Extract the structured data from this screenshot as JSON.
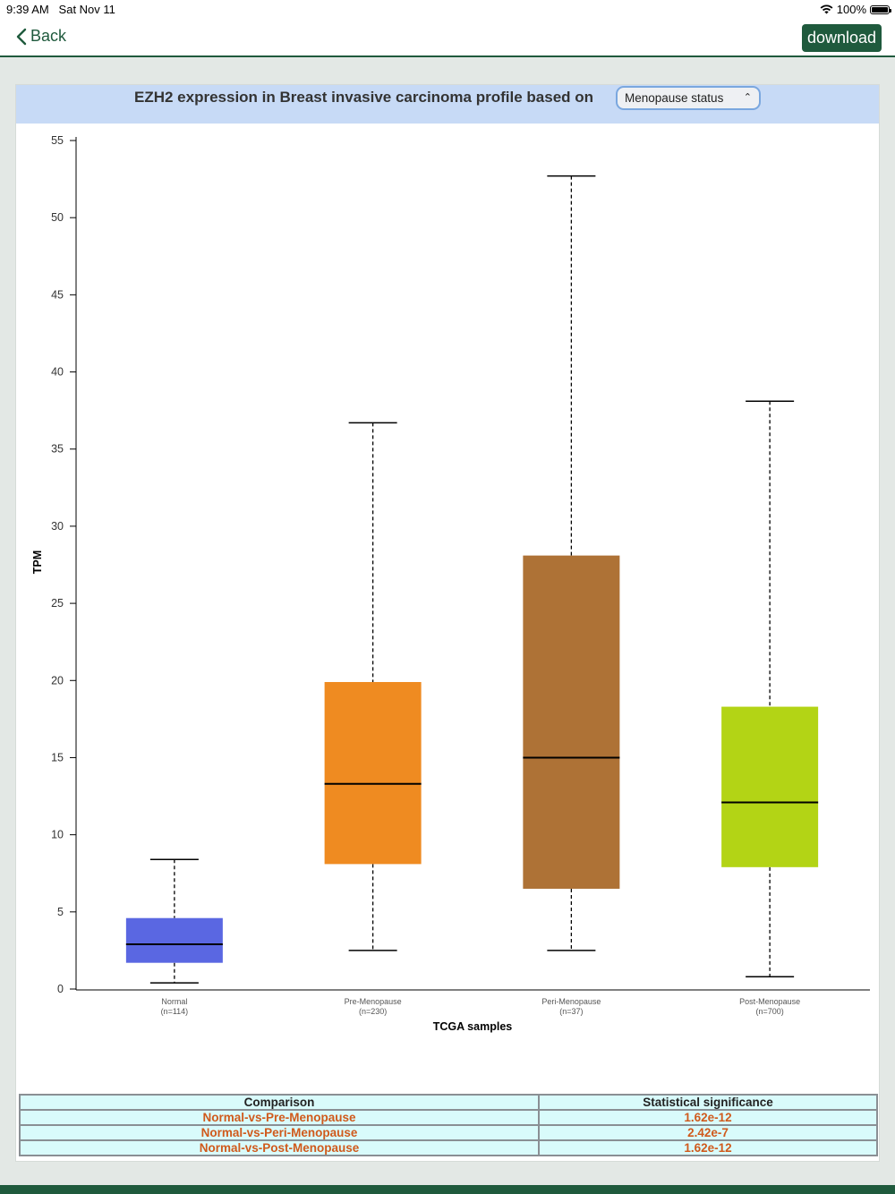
{
  "status_bar": {
    "time": "9:39 AM",
    "date": "Sat Nov 11",
    "battery": "100%"
  },
  "nav": {
    "back_label": "Back",
    "download_label": "download"
  },
  "header": {
    "title": "EZH2 expression in Breast invasive carcinoma profile based on",
    "select_value": "Menopause status"
  },
  "colors": {
    "brand": "#1f5a3d",
    "header_bg": "#c7daf6",
    "table_bg": "#d9fbfb",
    "table_value": "#d05a1c"
  },
  "chart_data": {
    "type": "box",
    "xlabel": "TCGA samples",
    "ylabel": "TPM",
    "ylim": [
      0,
      55
    ],
    "yticks": [
      0,
      5,
      10,
      15,
      20,
      25,
      30,
      35,
      40,
      45,
      50,
      55
    ],
    "grid": false,
    "categories": [
      {
        "label": "Normal",
        "n": "(n=114)",
        "color": "#5a67e2",
        "min": 0.4,
        "q1": 1.7,
        "median": 2.9,
        "q3": 4.6,
        "max": 8.4
      },
      {
        "label": "Pre-Menopause",
        "n": "(n=230)",
        "color": "#ef8b21",
        "min": 2.5,
        "q1": 8.1,
        "median": 13.3,
        "q3": 19.9,
        "max": 36.7
      },
      {
        "label": "Peri-Menopause",
        "n": "(n=37)",
        "color": "#ae7236",
        "min": 2.5,
        "q1": 6.5,
        "median": 15.0,
        "q3": 28.1,
        "max": 52.7
      },
      {
        "label": "Post-Menopause",
        "n": "(n=700)",
        "color": "#b3d415",
        "min": 0.8,
        "q1": 7.9,
        "median": 12.1,
        "q3": 18.3,
        "max": 38.1
      }
    ]
  },
  "table": {
    "headers": [
      "Comparison",
      "Statistical significance"
    ],
    "rows": [
      [
        "Normal-vs-Pre-Menopause",
        "1.62e-12"
      ],
      [
        "Normal-vs-Peri-Menopause",
        "2.42e-7"
      ],
      [
        "Normal-vs-Post-Menopause",
        "1.62e-12"
      ]
    ]
  }
}
